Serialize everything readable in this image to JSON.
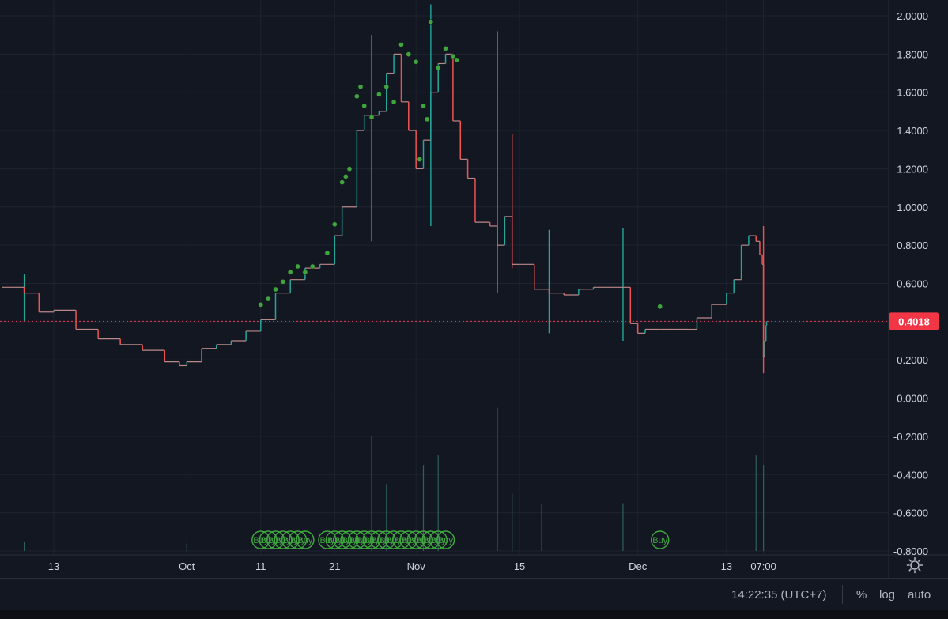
{
  "chart_data": {
    "type": "line",
    "title": "",
    "xlabel": "",
    "ylabel": "",
    "y_axis": {
      "ticks": [
        "2.0000",
        "1.8000",
        "1.6000",
        "1.4000",
        "1.2000",
        "1.0000",
        "0.8000",
        "0.6000",
        "0.4000",
        "0.2000",
        "0.0000",
        "-0.2000",
        "-0.4000",
        "-0.6000",
        "-0.8000"
      ],
      "tick_values": [
        2.0,
        1.8,
        1.6,
        1.4,
        1.2,
        1.0,
        0.8,
        0.6,
        0.4,
        0.2,
        0.0,
        -0.2,
        -0.4,
        -0.6,
        -0.8
      ],
      "ylim": [
        -0.8,
        2.0
      ]
    },
    "x_axis": {
      "ticks": [
        "13",
        "Oct",
        "11",
        "21",
        "Nov",
        "15",
        "Dec",
        "13",
        "07:00"
      ],
      "tick_dates": [
        "2021-09-13",
        "2021-10-01",
        "2021-10-11",
        "2021-10-21",
        "2021-11-01",
        "2021-11-15",
        "2021-12-01",
        "2021-12-13",
        "2021-12-18"
      ]
    },
    "grid": true,
    "last_price": {
      "label": "0.4018",
      "value": 0.4018,
      "color": "#f23645"
    },
    "series": [
      {
        "color_up": "#26a69a",
        "color_down": "#ef5350",
        "points": [
          [
            "2021-09-06",
            0.58
          ],
          [
            "2021-09-09",
            0.55
          ],
          [
            "2021-09-11",
            0.45
          ],
          [
            "2021-09-13",
            0.46
          ],
          [
            "2021-09-16",
            0.36
          ],
          [
            "2021-09-19",
            0.31
          ],
          [
            "2021-09-22",
            0.28
          ],
          [
            "2021-09-25",
            0.25
          ],
          [
            "2021-09-28",
            0.19
          ],
          [
            "2021-09-30",
            0.17
          ],
          [
            "2021-10-01",
            0.19
          ],
          [
            "2021-10-03",
            0.26
          ],
          [
            "2021-10-05",
            0.28
          ],
          [
            "2021-10-07",
            0.3
          ],
          [
            "2021-10-09",
            0.35
          ],
          [
            "2021-10-11",
            0.41
          ],
          [
            "2021-10-13",
            0.55
          ],
          [
            "2021-10-15",
            0.62
          ],
          [
            "2021-10-17",
            0.68
          ],
          [
            "2021-10-19",
            0.7
          ],
          [
            "2021-10-21",
            0.85
          ],
          [
            "2021-10-22",
            1.0
          ],
          [
            "2021-10-24",
            1.4
          ],
          [
            "2021-10-25",
            1.48
          ],
          [
            "2021-10-27",
            1.5
          ],
          [
            "2021-10-28",
            1.7
          ],
          [
            "2021-10-29",
            1.8
          ],
          [
            "2021-10-30",
            1.55
          ],
          [
            "2021-10-31",
            1.4
          ],
          [
            "2021-11-01",
            1.2
          ],
          [
            "2021-11-02",
            1.35
          ],
          [
            "2021-11-03",
            1.6
          ],
          [
            "2021-11-04",
            1.75
          ],
          [
            "2021-11-05",
            1.8
          ],
          [
            "2021-11-06",
            1.45
          ],
          [
            "2021-11-07",
            1.25
          ],
          [
            "2021-11-08",
            1.15
          ],
          [
            "2021-11-09",
            0.92
          ],
          [
            "2021-11-11",
            0.9
          ],
          [
            "2021-11-12",
            0.8
          ],
          [
            "2021-11-13",
            0.95
          ],
          [
            "2021-11-14",
            0.7
          ],
          [
            "2021-11-15",
            0.7
          ],
          [
            "2021-11-17",
            0.57
          ],
          [
            "2021-11-19",
            0.55
          ],
          [
            "2021-11-21",
            0.54
          ],
          [
            "2021-11-23",
            0.57
          ],
          [
            "2021-11-25",
            0.58
          ],
          [
            "2021-11-28",
            0.58
          ],
          [
            "2021-11-30",
            0.39
          ],
          [
            "2021-12-01",
            0.34
          ],
          [
            "2021-12-02",
            0.36
          ],
          [
            "2021-12-04",
            0.36
          ],
          [
            "2021-12-06",
            0.36
          ],
          [
            "2021-12-08",
            0.36
          ],
          [
            "2021-12-09",
            0.42
          ],
          [
            "2021-12-11",
            0.49
          ],
          [
            "2021-12-13",
            0.55
          ],
          [
            "2021-12-14",
            0.62
          ],
          [
            "2021-12-15",
            0.8
          ],
          [
            "2021-12-16",
            0.85
          ],
          [
            "2021-12-17",
            0.82
          ],
          [
            "2021-12-17 12:00",
            0.75
          ],
          [
            "2021-12-17 20:00",
            0.7
          ],
          [
            "2021-12-18",
            0.22
          ],
          [
            "2021-12-18 04:00",
            0.3
          ],
          [
            "2021-12-18 08:00",
            0.38
          ],
          [
            "2021-12-18 10:00",
            0.4018
          ]
        ]
      }
    ],
    "spikes": [
      {
        "date": "2021-09-09",
        "high": 0.65,
        "low": 0.4
      },
      {
        "date": "2021-10-26",
        "high": 1.9,
        "low": 0.82
      },
      {
        "date": "2021-11-03",
        "high": 2.06,
        "low": 0.9
      },
      {
        "date": "2021-11-12",
        "high": 1.92,
        "low": 0.55
      },
      {
        "date": "2021-11-14",
        "high": 1.38,
        "low": 0.68
      },
      {
        "date": "2021-11-19",
        "high": 0.88,
        "low": 0.34
      },
      {
        "date": "2021-11-29",
        "high": 0.89,
        "low": 0.3
      },
      {
        "date": "2021-12-18",
        "high": 0.9,
        "low": 0.13
      }
    ],
    "signals": {
      "marker_color": "#3fa63f",
      "label": "Buy",
      "dots": [
        [
          "2021-10-11",
          0.46
        ],
        [
          "2021-10-12",
          0.49
        ],
        [
          "2021-10-13",
          0.54
        ],
        [
          "2021-10-14",
          0.58
        ],
        [
          "2021-10-15",
          0.63
        ],
        [
          "2021-10-16",
          0.66
        ],
        [
          "2021-10-17",
          0.63
        ],
        [
          "2021-10-18",
          0.66
        ],
        [
          "2021-10-20",
          0.73
        ],
        [
          "2021-10-21",
          0.88
        ],
        [
          "2021-10-22",
          1.1
        ],
        [
          "2021-10-22 12:00",
          1.13
        ],
        [
          "2021-10-23",
          1.17
        ],
        [
          "2021-10-24",
          1.55
        ],
        [
          "2021-10-24 12:00",
          1.6
        ],
        [
          "2021-10-25",
          1.5
        ],
        [
          "2021-10-26",
          1.44
        ],
        [
          "2021-10-27",
          1.56
        ],
        [
          "2021-10-28",
          1.6
        ],
        [
          "2021-10-29",
          1.52
        ],
        [
          "2021-10-30",
          1.82
        ],
        [
          "2021-10-31",
          1.77
        ],
        [
          "2021-11-01",
          1.73
        ],
        [
          "2021-11-02",
          1.5
        ],
        [
          "2021-11-03",
          1.94
        ],
        [
          "2021-11-04",
          1.7
        ],
        [
          "2021-11-05",
          1.8
        ],
        [
          "2021-11-06",
          1.76
        ],
        [
          "2021-11-06 12:00",
          1.74
        ],
        [
          "2021-11-01 12:00",
          1.22
        ],
        [
          "2021-11-02 12:00",
          1.43
        ],
        [
          "2021-12-04",
          0.45
        ]
      ],
      "buy_labels": [
        "2021-10-11",
        "2021-10-12",
        "2021-10-13",
        "2021-10-14",
        "2021-10-15",
        "2021-10-16",
        "2021-10-17",
        "2021-10-20",
        "2021-10-21",
        "2021-10-22",
        "2021-10-23",
        "2021-10-24",
        "2021-10-25",
        "2021-10-26",
        "2021-10-27",
        "2021-10-28",
        "2021-10-29",
        "2021-10-30",
        "2021-10-31",
        "2021-11-01",
        "2021-11-02",
        "2021-11-03",
        "2021-11-04",
        "2021-11-05",
        "2021-12-04"
      ]
    },
    "volume": [
      [
        "2021-10-26",
        -0.2
      ],
      [
        "2021-10-28",
        -0.45
      ],
      [
        "2021-11-02",
        -0.35
      ],
      [
        "2021-11-04",
        -0.3
      ],
      [
        "2021-11-12",
        -0.05
      ],
      [
        "2021-11-14",
        -0.5
      ],
      [
        "2021-11-18",
        -0.55
      ],
      [
        "2021-11-29",
        -0.55
      ],
      [
        "2021-12-17",
        -0.3
      ],
      [
        "2021-12-18",
        -0.35
      ],
      [
        "2021-09-09",
        -0.75
      ],
      [
        "2021-10-01",
        -0.76
      ]
    ]
  },
  "status_bar": {
    "time": "14:22:35 (UTC+7)",
    "percent": "%",
    "log": "log",
    "auto": "auto"
  },
  "icons": {
    "settings": "gear-icon"
  }
}
